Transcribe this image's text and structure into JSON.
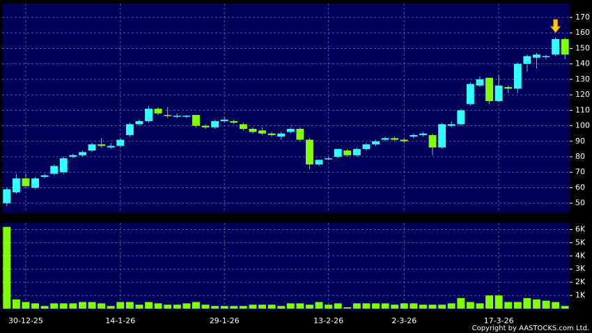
{
  "chart_data": [
    {
      "type": "candlestick",
      "open": [
        50,
        57,
        66,
        60,
        67,
        69,
        70,
        80,
        81,
        84,
        88,
        86,
        87,
        94,
        101,
        103,
        111,
        107,
        106.5,
        106.5,
        107,
        100,
        99,
        103,
        103,
        101,
        98,
        97,
        95,
        93,
        96,
        98,
        91,
        75,
        79,
        80,
        84,
        81,
        85,
        88,
        91,
        92,
        91,
        93,
        94,
        94,
        86,
        100,
        101,
        114,
        126,
        131,
        116,
        125,
        124,
        140,
        144,
        145,
        146,
        156
      ],
      "high": [
        60,
        69,
        69,
        67,
        69,
        75,
        80,
        82,
        84,
        89,
        92,
        89,
        92,
        102,
        104,
        113,
        112,
        112,
        108,
        107,
        107,
        101,
        104,
        106,
        104,
        102,
        99,
        99,
        96,
        96,
        99,
        99,
        92,
        78,
        80,
        85,
        85,
        86,
        89,
        91,
        93,
        93,
        92,
        95,
        96,
        95,
        102,
        103,
        111,
        128,
        132,
        131,
        133,
        126,
        141,
        146,
        147,
        146,
        157,
        157
      ],
      "low": [
        48,
        56,
        60,
        59,
        66,
        68,
        69,
        79,
        80,
        83,
        86,
        85,
        86,
        93,
        100,
        102,
        107,
        105,
        105,
        105,
        99,
        98,
        98,
        102,
        101,
        97,
        95,
        94,
        93,
        91,
        95,
        90,
        72,
        74,
        78,
        79,
        80,
        80,
        84,
        87,
        90,
        90,
        89,
        92,
        93,
        81,
        85,
        99,
        100,
        113,
        125,
        114,
        115,
        121,
        121,
        135,
        137,
        143,
        145,
        143
      ],
      "close": [
        59,
        66,
        61,
        66,
        68,
        74,
        79,
        81,
        83,
        88,
        87,
        87,
        91,
        101,
        103,
        111,
        108,
        106.5,
        106.5,
        106.5,
        100,
        99,
        103,
        104,
        102,
        98,
        96,
        95,
        94,
        95,
        98,
        91,
        75,
        78,
        79,
        85,
        81,
        85,
        88,
        90,
        92,
        91,
        90,
        94,
        95,
        86,
        101,
        101,
        110,
        127,
        130,
        116,
        126,
        124,
        140,
        145,
        146,
        145,
        156,
        146
      ],
      "up_color": "#33ffff",
      "down_color": "#80ff00",
      "ylim": [
        44,
        179
      ],
      "yticks": [
        50,
        60,
        70,
        80,
        90,
        100,
        110,
        120,
        130,
        140,
        150,
        160,
        170
      ],
      "grid": true
    },
    {
      "type": "bar",
      "categories": [
        null,
        null,
        "30-12-25",
        null,
        null,
        null,
        null,
        null,
        null,
        null,
        null,
        null,
        "14-1-26",
        null,
        null,
        null,
        null,
        null,
        null,
        null,
        null,
        null,
        null,
        "29-1-26",
        null,
        null,
        null,
        null,
        null,
        null,
        null,
        null,
        null,
        null,
        "13-2-26",
        null,
        null,
        null,
        null,
        null,
        null,
        null,
        "2-3-26",
        null,
        null,
        null,
        null,
        null,
        null,
        null,
        null,
        null,
        "17-3-26",
        null,
        null,
        null,
        null,
        null,
        null,
        null
      ],
      "values": [
        6200,
        700,
        500,
        400,
        200,
        400,
        400,
        400,
        500,
        500,
        400,
        200,
        500,
        500,
        300,
        500,
        400,
        300,
        300,
        400,
        500,
        300,
        200,
        200,
        200,
        200,
        300,
        300,
        300,
        200,
        400,
        400,
        300,
        500,
        300,
        400,
        100,
        400,
        400,
        400,
        400,
        300,
        400,
        400,
        300,
        300,
        300,
        400,
        800,
        500,
        400,
        1000,
        1000,
        500,
        500,
        800,
        700,
        600,
        500,
        200
      ],
      "color": "#80ff00",
      "ylim": [
        0,
        6500
      ],
      "yticks": [
        {
          "value": 1000,
          "label": "1K"
        },
        {
          "value": 2000,
          "label": "2K"
        },
        {
          "value": 3000,
          "label": "3K"
        },
        {
          "value": 4000,
          "label": "4K"
        },
        {
          "value": 5000,
          "label": "5K"
        },
        {
          "value": 6000,
          "label": "6K"
        }
      ],
      "grid": true,
      "footer": "Copyright by AASTOCKS.com Ltd."
    }
  ]
}
